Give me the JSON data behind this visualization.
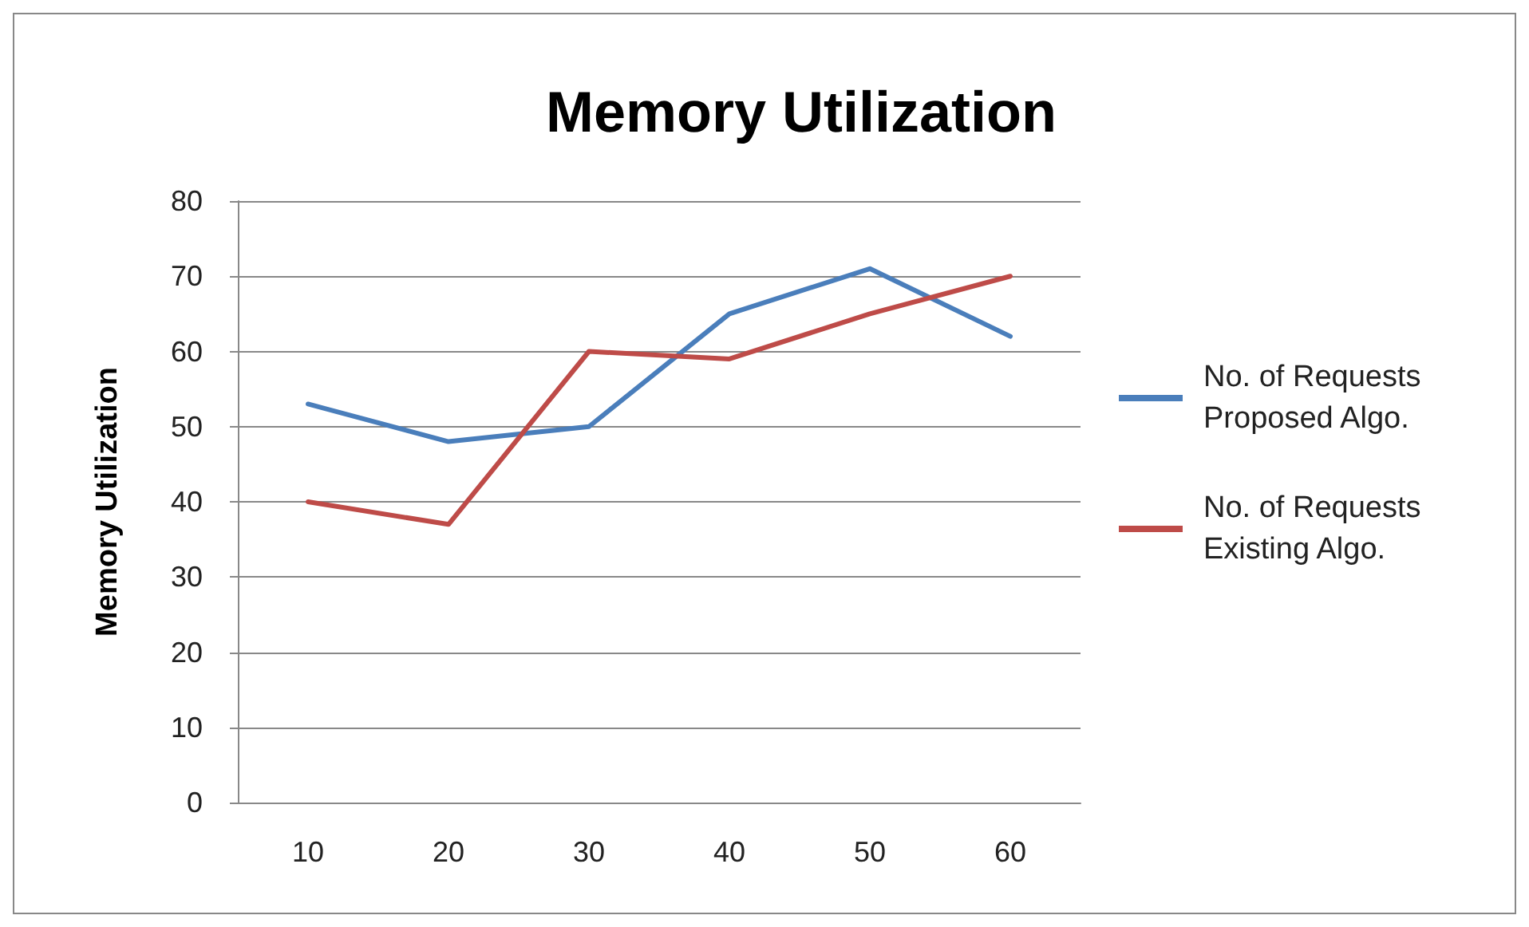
{
  "chart_data": {
    "type": "line",
    "title": "Memory Utilization",
    "ylabel": "Memory Utilization",
    "categories": [
      "10",
      "20",
      "30",
      "40",
      "50",
      "60"
    ],
    "series": [
      {
        "name": "No. of Requests Proposed Algo.",
        "color": "#4a7ebb",
        "values": [
          53,
          48,
          50,
          65,
          71,
          62
        ]
      },
      {
        "name": "No. of Requests Existing Algo.",
        "color": "#be4b48",
        "values": [
          40,
          37,
          60,
          59,
          65,
          70
        ]
      }
    ],
    "ylim": [
      0,
      80
    ],
    "yticks": [
      0,
      10,
      20,
      30,
      40,
      50,
      60,
      70,
      80
    ],
    "grid": "y",
    "legend": "right",
    "marker": "none",
    "line_style": "solid"
  }
}
